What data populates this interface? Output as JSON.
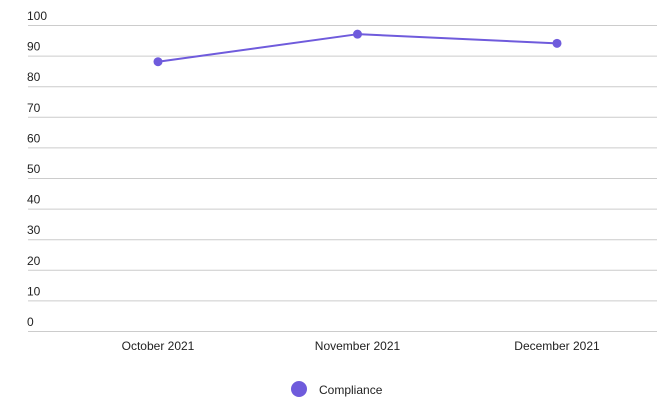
{
  "chart_data": {
    "type": "line",
    "title": "",
    "xlabel": "",
    "ylabel": "",
    "categories": [
      "October 2021",
      "November 2021",
      "December 2021"
    ],
    "series": [
      {
        "name": "Compliance",
        "values": [
          88,
          97,
          94
        ]
      }
    ],
    "ylim": [
      0,
      100
    ],
    "yticks": [
      0,
      10,
      20,
      30,
      40,
      50,
      60,
      70,
      80,
      90,
      100
    ],
    "grid": true,
    "legend_position": "bottom-center",
    "colors": {
      "series": "#6f5bdc"
    }
  }
}
